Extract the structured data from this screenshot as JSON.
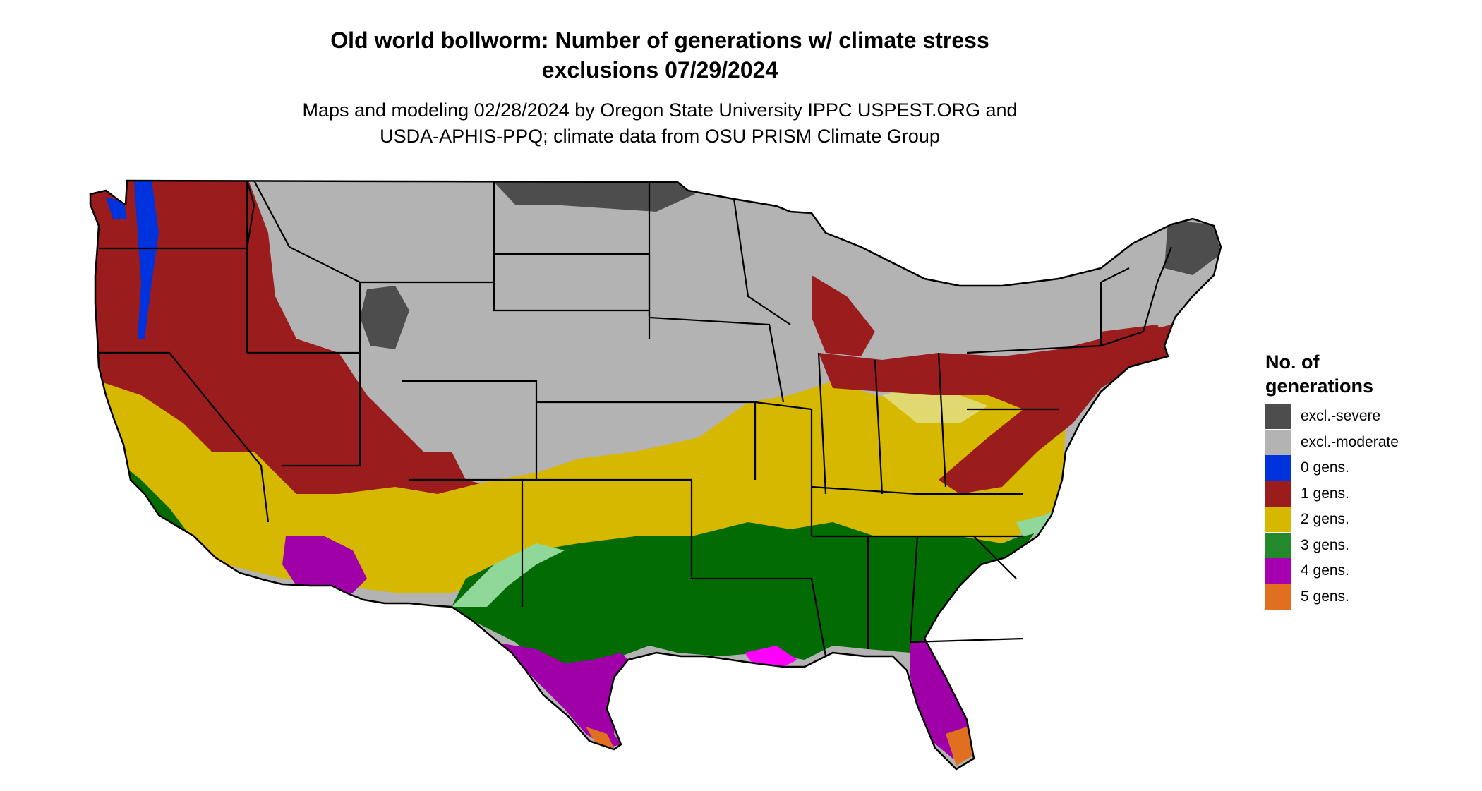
{
  "title_line1": "Old world bollworm: Number of generations w/ climate stress",
  "title_line2": "exclusions 07/29/2024",
  "subtitle_line1": "Maps and modeling 02/28/2024 by Oregon State University IPPC USPEST.ORG and",
  "subtitle_line2": "USDA-APHIS-PPQ; climate data from OSU PRISM Climate Group",
  "legend": {
    "title_line1": "No. of",
    "title_line2": "generations",
    "items": [
      {
        "label": "excl.-severe",
        "color": "#4d4d4d"
      },
      {
        "label": "excl.-moderate",
        "color": "#b3b3b3"
      },
      {
        "label": "0 gens.",
        "color": "#0033dd"
      },
      {
        "label": "1 gens.",
        "color": "#9b1c1c"
      },
      {
        "label": "2 gens.",
        "color": "#d6b800"
      },
      {
        "label": "3 gens.",
        "color": "#23892b"
      },
      {
        "label": "4 gens.",
        "color": "#a600b0"
      },
      {
        "label": "5 gens.",
        "color": "#e07020"
      }
    ]
  },
  "map_colors": {
    "excl_severe": "#4d4d4d",
    "excl_moderate": "#b3b3b3",
    "gen0": "#0033dd",
    "gen1": "#9b1c1c",
    "gen2": "#d6b800",
    "gen2_light": "#e0d870",
    "gen3": "#036b03",
    "gen3_light": "#8fd89a",
    "gen4": "#a000a8",
    "gen4_bright": "#ff00ff",
    "gen5": "#e07020",
    "border": "#000000"
  }
}
